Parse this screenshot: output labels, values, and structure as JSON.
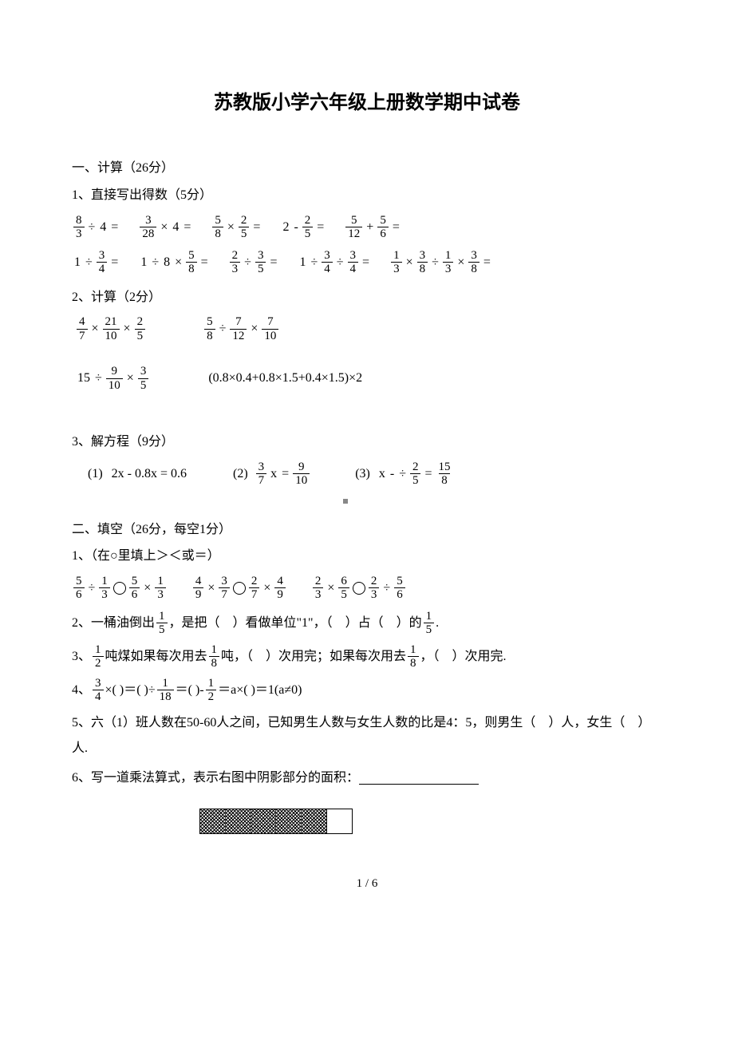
{
  "title": "苏教版小学六年级上册数学期中试卷",
  "sec1": {
    "header": "一、计算（26分）",
    "p1": {
      "header": "1、直接写出得数（5分）",
      "row1": [
        {
          "parts": [
            {
              "frac": [
                "8",
                "3"
              ]
            },
            "÷",
            "4",
            "="
          ]
        },
        {
          "parts": [
            {
              "frac": [
                "3",
                "28"
              ]
            },
            "×",
            "4",
            "="
          ]
        },
        {
          "parts": [
            {
              "frac": [
                "5",
                "8"
              ]
            },
            "×",
            {
              "frac": [
                "2",
                "5"
              ]
            },
            "="
          ]
        },
        {
          "parts": [
            "2",
            "-",
            {
              "frac": [
                "2",
                "5"
              ]
            },
            "="
          ]
        },
        {
          "parts": [
            {
              "frac": [
                "5",
                "12"
              ]
            },
            "+",
            {
              "frac": [
                "5",
                "6"
              ]
            },
            "="
          ]
        }
      ],
      "row2": [
        {
          "parts": [
            "1",
            "÷",
            {
              "frac": [
                "3",
                "4"
              ]
            },
            "="
          ]
        },
        {
          "parts": [
            "1",
            "÷",
            "8",
            "×",
            {
              "frac": [
                "5",
                "8"
              ]
            },
            "="
          ]
        },
        {
          "parts": [
            {
              "frac": [
                "2",
                "3"
              ]
            },
            "÷",
            {
              "frac": [
                "3",
                "5"
              ]
            },
            "="
          ]
        },
        {
          "parts": [
            "1",
            "÷",
            {
              "frac": [
                "3",
                "4"
              ]
            },
            "÷",
            {
              "frac": [
                "3",
                "4"
              ]
            },
            "="
          ]
        },
        {
          "parts": [
            {
              "frac": [
                "1",
                "3"
              ]
            },
            "×",
            {
              "frac": [
                "3",
                "8"
              ]
            },
            "÷",
            {
              "frac": [
                "1",
                "3"
              ]
            },
            "×",
            {
              "frac": [
                "3",
                "8"
              ]
            },
            "="
          ]
        }
      ]
    },
    "p2": {
      "header": "2、计算（2分）",
      "row1": [
        {
          "parts": [
            {
              "frac": [
                "4",
                "7"
              ]
            },
            "×",
            {
              "frac": [
                "21",
                "10"
              ]
            },
            "×",
            {
              "frac": [
                "2",
                "5"
              ]
            }
          ]
        },
        {
          "parts": [
            {
              "frac": [
                "5",
                "8"
              ]
            },
            "÷",
            {
              "frac": [
                "7",
                "12"
              ]
            },
            "×",
            {
              "frac": [
                "7",
                "10"
              ]
            }
          ]
        }
      ],
      "row2": [
        {
          "parts": [
            "15",
            "÷",
            {
              "frac": [
                "9",
                "10"
              ]
            },
            "×",
            {
              "frac": [
                "3",
                "5"
              ]
            }
          ]
        },
        {
          "parts": [
            "(0.8×0.4+0.8×1.5+0.4×1.5)×2"
          ]
        }
      ]
    },
    "p3": {
      "header": "3、解方程（9分）",
      "items": [
        {
          "label": "(1)",
          "parts": [
            "2x - 0.8x = 0.6"
          ]
        },
        {
          "label": "(2)",
          "parts": [
            {
              "frac": [
                "3",
                "7"
              ]
            },
            "x",
            "=",
            {
              "frac": [
                "9",
                "10"
              ]
            }
          ]
        },
        {
          "label": "(3)",
          "parts": [
            "x",
            "-",
            "÷",
            {
              "frac": [
                "2",
                "5"
              ]
            },
            "=",
            {
              "frac": [
                "15",
                "8"
              ]
            }
          ]
        }
      ]
    }
  },
  "sec2": {
    "header": "二、填空（26分，每空1分）",
    "q1": {
      "header": "1、（在○里填上＞＜或＝）",
      "items": [
        {
          "parts": [
            {
              "frac": [
                "5",
                "6"
              ]
            },
            "÷",
            {
              "frac": [
                "1",
                "3"
              ]
            },
            "○",
            {
              "frac": [
                "5",
                "6"
              ]
            },
            "×",
            {
              "frac": [
                "1",
                "3"
              ]
            }
          ]
        },
        {
          "parts": [
            {
              "frac": [
                "4",
                "9"
              ]
            },
            "×",
            {
              "frac": [
                "3",
                "7"
              ]
            },
            "○",
            {
              "frac": [
                "2",
                "7"
              ]
            },
            "×",
            {
              "frac": [
                "4",
                "9"
              ]
            }
          ]
        },
        {
          "parts": [
            {
              "frac": [
                "2",
                "3"
              ]
            },
            "×",
            {
              "frac": [
                "6",
                "5"
              ]
            },
            "○",
            {
              "frac": [
                "2",
                "3"
              ]
            },
            "÷",
            {
              "frac": [
                "5",
                "6"
              ]
            }
          ]
        }
      ]
    },
    "q2": {
      "prefix": "2、一桶油倒出",
      "frac": [
        "1",
        "5"
      ],
      "mid": "，是把（　）看做单位\"1\"，（　）占（　）的",
      "frac2": [
        "1",
        "5"
      ],
      "suffix": "."
    },
    "q3": {
      "prefix": "3、",
      "frac1": [
        "1",
        "2"
      ],
      "t1": "吨煤如果每次用去",
      "frac2": [
        "1",
        "8"
      ],
      "t2": "吨，（　）次用完；如果每次用去",
      "frac3": [
        "1",
        "8"
      ],
      "t3": "，（　）次用完."
    },
    "q4": {
      "prefix": "4、",
      "frac1": [
        "3",
        "4"
      ],
      "t1": "×( )＝( )÷",
      "frac2": [
        "1",
        "18"
      ],
      "t2": "＝( )-",
      "frac3": [
        "1",
        "2"
      ],
      "t3": "＝a×( )＝1(a≠0)"
    },
    "q5": "5、六（1）班人数在50-60人之间，已知男生人数与女生人数的比是4：5，则男生（　）人，女生（　）人.",
    "q6": "6、写一道乘法算式，表示右图中阴影部分的面积："
  },
  "footer": "1 / 6"
}
